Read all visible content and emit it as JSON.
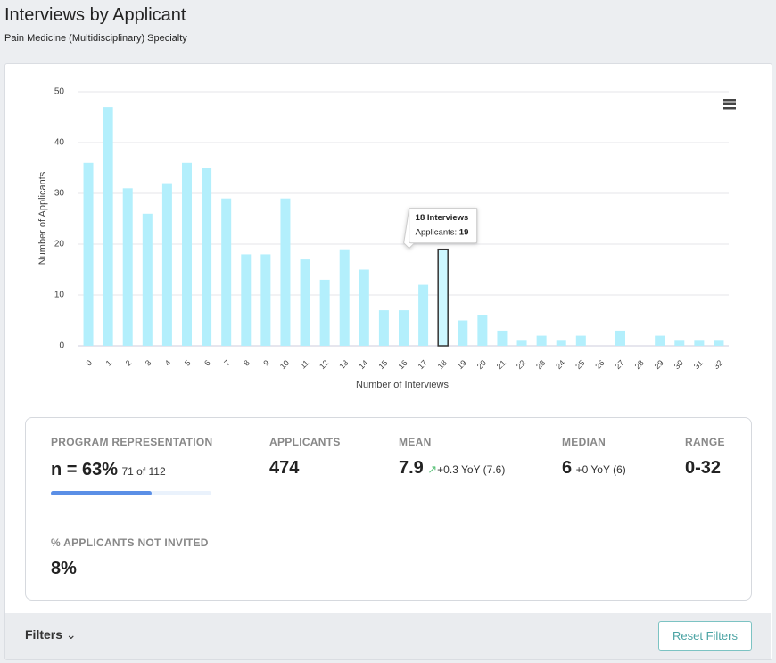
{
  "header": {
    "title": "Interviews by Applicant",
    "subtitle": "Pain Medicine (Multidisciplinary) Specialty"
  },
  "chart_data": {
    "type": "bar",
    "categories": [
      "0",
      "1",
      "2",
      "3",
      "4",
      "5",
      "6",
      "7",
      "8",
      "9",
      "10",
      "11",
      "12",
      "13",
      "14",
      "15",
      "16",
      "17",
      "18",
      "19",
      "20",
      "21",
      "22",
      "23",
      "24",
      "25",
      "26",
      "27",
      "28",
      "29",
      "30",
      "31",
      "32"
    ],
    "values": [
      36,
      47,
      31,
      26,
      32,
      36,
      35,
      29,
      18,
      18,
      29,
      17,
      13,
      19,
      15,
      7,
      7,
      12,
      19,
      5,
      6,
      3,
      1,
      2,
      1,
      2,
      0,
      3,
      0,
      2,
      1,
      1,
      1
    ],
    "color": "#b3effc",
    "highlight_color": "#cdf7ff",
    "highlight_index": 18,
    "x_label": "Number of Interviews",
    "y_label": "Number of Applicants",
    "ylim": [
      0,
      50
    ],
    "yticks": [
      0,
      10,
      20,
      30,
      40,
      50
    ],
    "grid": true,
    "tooltip": {
      "title": "18 Interviews",
      "label": "Applicants:"
    }
  },
  "stats": {
    "representation": {
      "heading": "PROGRAM REPRESENTATION",
      "label": "n = 63%",
      "value": 63,
      "detail": "71 of 112"
    },
    "applicants": {
      "heading": "APPLICANTS",
      "value": "474"
    },
    "mean": {
      "heading": "MEAN",
      "value": "7.9",
      "change": "+0.3 YoY (7.6)"
    },
    "median": {
      "heading": "MEDIAN",
      "value": "6",
      "change": "+0 YoY (6)"
    },
    "range": {
      "heading": "RANGE",
      "value": "0-32"
    },
    "not_invited": {
      "heading": "% APPLICANTS NOT INVITED",
      "value": "8%"
    }
  },
  "footer": {
    "filters": "Filters",
    "reset": "Reset Filters"
  }
}
